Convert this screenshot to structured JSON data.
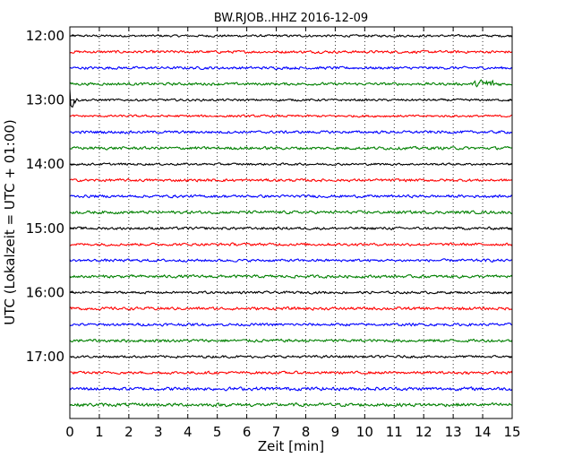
{
  "chart_data": {
    "type": "line",
    "title": "BW.RJOB..HHZ 2016-12-09",
    "xlabel": "Zeit  [min]",
    "ylabel": "UTC (Lokalzeit = UTC + 01:00)",
    "xlim": [
      0,
      15
    ],
    "x_ticks": [
      "0",
      "1",
      "2",
      "3",
      "4",
      "5",
      "6",
      "7",
      "8",
      "9",
      "10",
      "11",
      "12",
      "13",
      "14",
      "15"
    ],
    "y_ticks": [
      "12:00",
      "13:00",
      "14:00",
      "15:00",
      "16:00",
      "17:00"
    ],
    "grid": "vertical dotted",
    "trace_colors": [
      "#000000",
      "#ff0000",
      "#0000ff",
      "#008000"
    ],
    "traces": [
      {
        "start": "12:00",
        "amplitude": 0.1
      },
      {
        "start": "12:15",
        "amplitude": 0.12
      },
      {
        "start": "12:30",
        "amplitude": 0.12
      },
      {
        "start": "12:45",
        "amplitude": 0.12,
        "event": {
          "from": 13.5,
          "to": 15,
          "amplitude": 0.45
        }
      },
      {
        "start": "13:00",
        "amplitude": 0.1,
        "event": {
          "from": 0,
          "to": 0.4,
          "amplitude": 1.4
        }
      },
      {
        "start": "13:15",
        "amplitude": 0.1
      },
      {
        "start": "13:30",
        "amplitude": 0.12
      },
      {
        "start": "13:45",
        "amplitude": 0.13
      },
      {
        "start": "14:00",
        "amplitude": 0.1
      },
      {
        "start": "14:15",
        "amplitude": 0.12
      },
      {
        "start": "14:30",
        "amplitude": 0.12
      },
      {
        "start": "14:45",
        "amplitude": 0.13
      },
      {
        "start": "15:00",
        "amplitude": 0.12
      },
      {
        "start": "15:15",
        "amplitude": 0.12
      },
      {
        "start": "15:30",
        "amplitude": 0.12
      },
      {
        "start": "15:45",
        "amplitude": 0.13
      },
      {
        "start": "16:00",
        "amplitude": 0.11
      },
      {
        "start": "16:15",
        "amplitude": 0.13
      },
      {
        "start": "16:30",
        "amplitude": 0.12
      },
      {
        "start": "16:45",
        "amplitude": 0.13
      },
      {
        "start": "17:00",
        "amplitude": 0.11
      },
      {
        "start": "17:15",
        "amplitude": 0.12
      },
      {
        "start": "17:30",
        "amplitude": 0.15
      },
      {
        "start": "17:45",
        "amplitude": 0.15
      }
    ]
  }
}
